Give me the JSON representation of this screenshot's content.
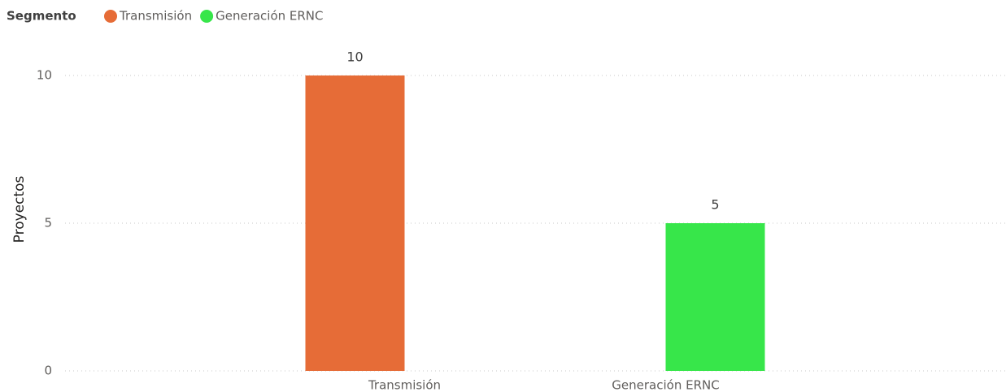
{
  "chart_data": {
    "type": "bar",
    "legend_title": "Segmento",
    "y_label": "Proyectos",
    "categories": [
      "Transmisión",
      "Generación ERNC"
    ],
    "series": [
      {
        "name": "Transmisión",
        "color": "#e66c37",
        "values": [
          10,
          null
        ]
      },
      {
        "name": "Generación ERNC",
        "color": "#37e64a",
        "values": [
          null,
          5
        ]
      }
    ],
    "ylim": [
      0,
      10
    ],
    "yticks": [
      0,
      5,
      10
    ],
    "grid": true,
    "legend": "top-left",
    "data_labels": true
  }
}
